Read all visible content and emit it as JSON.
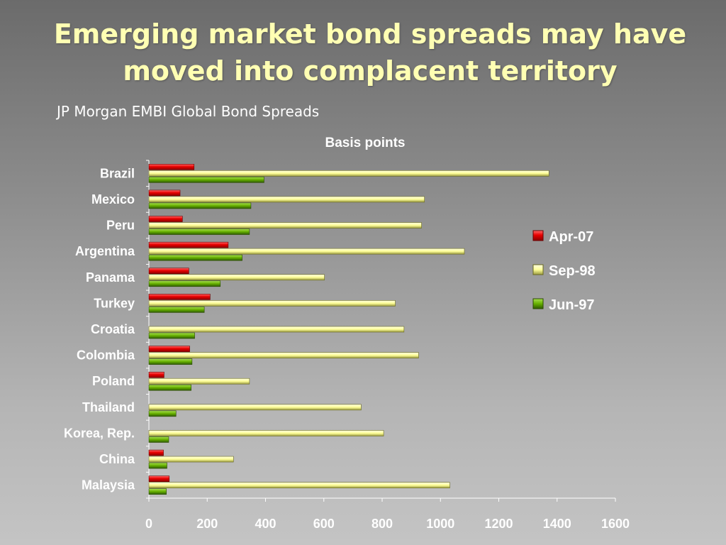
{
  "title_line1": "Emerging market bond spreads may have",
  "title_line2": "moved into complacent territory",
  "subtitle": "JP Morgan EMBI Global Bond Spreads",
  "chart_data": {
    "type": "bar",
    "orientation": "horizontal",
    "title": "Basis points",
    "xlabel": "",
    "ylabel": "",
    "xlim": [
      0,
      1600
    ],
    "x_ticks": [
      0,
      200,
      400,
      600,
      800,
      1000,
      1200,
      1400,
      1600
    ],
    "legend_position": "right",
    "categories": [
      "Brazil",
      "Mexico",
      "Peru",
      "Argentina",
      "Panama",
      "Turkey",
      "Croatia",
      "Colombia",
      "Poland",
      "Thailand",
      "Korea, Rep.",
      "China",
      "Malaysia"
    ],
    "series": [
      {
        "name": "Apr-07",
        "color": "#e00000",
        "values": [
          155,
          107,
          115,
          272,
          137,
          210,
          0,
          140,
          52,
          0,
          0,
          50,
          70
        ]
      },
      {
        "name": "Sep-98",
        "color": "#ffff99",
        "values": [
          1372,
          945,
          935,
          1082,
          602,
          845,
          875,
          925,
          345,
          728,
          805,
          290,
          1032
        ]
      },
      {
        "name": "Jun-97",
        "color": "#66b000",
        "values": [
          395,
          350,
          345,
          320,
          245,
          190,
          157,
          148,
          145,
          93,
          68,
          62,
          60
        ]
      }
    ]
  }
}
